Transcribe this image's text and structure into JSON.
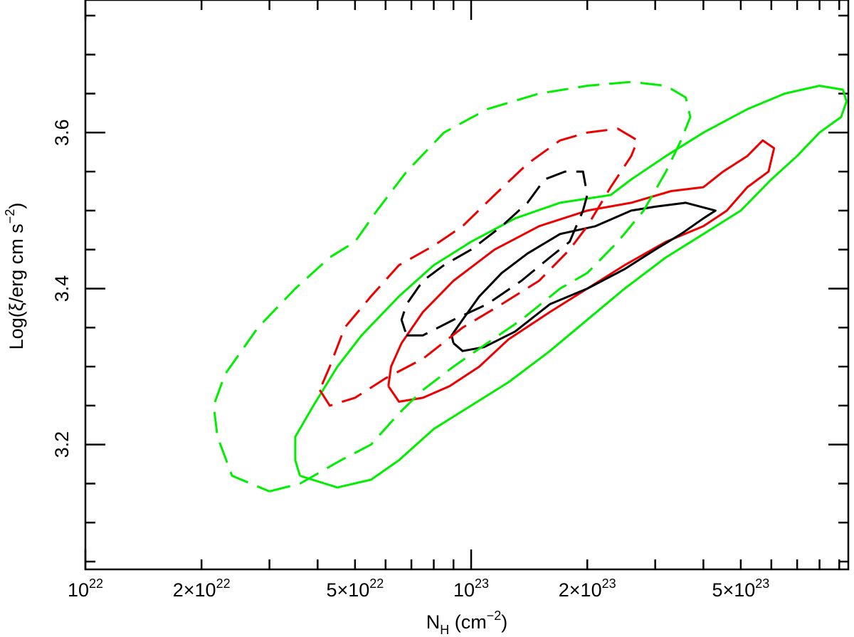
{
  "chart_data": {
    "type": "contour",
    "xlabel": {
      "main": "N",
      "sub": "H",
      "unit_prefix": " (cm",
      "unit_sup": "−2",
      "unit_suffix": ")"
    },
    "ylabel": {
      "main": "Log(ξ/erg cm s",
      "sup": "−2",
      "suffix": ")"
    },
    "x_scale": "log",
    "xlim": [
      1e+22,
      9.5e+23
    ],
    "ylim": [
      3.04,
      3.77
    ],
    "x_ticks": [
      {
        "value": 1e+22,
        "base": "10",
        "exp": "22",
        "mult": ""
      },
      {
        "value": 2e+22,
        "base": "10",
        "exp": "22",
        "mult": "2×"
      },
      {
        "value": 5e+22,
        "base": "10",
        "exp": "22",
        "mult": "5×"
      },
      {
        "value": 1e+23,
        "base": "10",
        "exp": "23",
        "mult": ""
      },
      {
        "value": 2e+23,
        "base": "10",
        "exp": "23",
        "mult": "2×"
      },
      {
        "value": 5e+23,
        "base": "10",
        "exp": "23",
        "mult": "5×"
      }
    ],
    "y_ticks": [
      {
        "value": 3.2,
        "label": "3.2"
      },
      {
        "value": 3.4,
        "label": "3.4"
      },
      {
        "value": 3.6,
        "label": "3.6"
      }
    ],
    "grid": false,
    "series": [
      {
        "color": "#00ee00",
        "style": "solid",
        "points": [
          [
            3.6e+22,
            3.16
          ],
          [
            4.5e+22,
            3.145
          ],
          [
            5.5e+22,
            3.155
          ],
          [
            6.5e+22,
            3.18
          ],
          [
            8e+22,
            3.22
          ],
          [
            1e+23,
            3.25
          ],
          [
            1.25e+23,
            3.28
          ],
          [
            1.6e+23,
            3.32
          ],
          [
            2e+23,
            3.36
          ],
          [
            2.5e+23,
            3.4
          ],
          [
            3.2e+23,
            3.44
          ],
          [
            4e+23,
            3.47
          ],
          [
            5e+23,
            3.5
          ],
          [
            6e+23,
            3.54
          ],
          [
            7e+23,
            3.57
          ],
          [
            8e+23,
            3.6
          ],
          [
            9.1e+23,
            3.62
          ],
          [
            9.4e+23,
            3.64
          ],
          [
            9.2e+23,
            3.655
          ],
          [
            8e+23,
            3.66
          ],
          [
            6.5e+23,
            3.65
          ],
          [
            5.2e+23,
            3.63
          ],
          [
            4e+23,
            3.6
          ],
          [
            3.2e+23,
            3.57
          ],
          [
            2.6e+23,
            3.54
          ],
          [
            2.3e+23,
            3.52
          ],
          [
            1.7e+23,
            3.51
          ],
          [
            1.3e+23,
            3.49
          ],
          [
            1e+23,
            3.46
          ],
          [
            8e+22,
            3.43
          ],
          [
            6.5e+22,
            3.39
          ],
          [
            5.2e+22,
            3.34
          ],
          [
            4.5e+22,
            3.3
          ],
          [
            3.9e+22,
            3.25
          ],
          [
            3.5e+22,
            3.21
          ],
          [
            3.5e+22,
            3.18
          ],
          [
            3.6e+22,
            3.16
          ]
        ]
      },
      {
        "color": "#ee0000",
        "style": "solid",
        "points": [
          [
            6.1e+22,
            3.275
          ],
          [
            6.5e+22,
            3.255
          ],
          [
            7.5e+22,
            3.26
          ],
          [
            8.8e+22,
            3.275
          ],
          [
            1.05e+23,
            3.3
          ],
          [
            1.25e+23,
            3.335
          ],
          [
            1.6e+23,
            3.37
          ],
          [
            2e+23,
            3.4
          ],
          [
            2.5e+23,
            3.43
          ],
          [
            3.2e+23,
            3.46
          ],
          [
            4e+23,
            3.48
          ],
          [
            4.6e+23,
            3.5
          ],
          [
            5.2e+23,
            3.53
          ],
          [
            5.9e+23,
            3.55
          ],
          [
            6.1e+23,
            3.58
          ],
          [
            5.7e+23,
            3.59
          ],
          [
            5.2e+23,
            3.57
          ],
          [
            4.5e+23,
            3.55
          ],
          [
            4e+23,
            3.53
          ],
          [
            3.3e+23,
            3.525
          ],
          [
            2.6e+23,
            3.51
          ],
          [
            2e+23,
            3.5
          ],
          [
            1.5e+23,
            3.48
          ],
          [
            1.15e+23,
            3.45
          ],
          [
            9e+22,
            3.41
          ],
          [
            7.5e+22,
            3.37
          ],
          [
            6.6e+22,
            3.33
          ],
          [
            6.2e+22,
            3.3
          ],
          [
            6.1e+22,
            3.275
          ]
        ]
      },
      {
        "color": "#000000",
        "style": "solid",
        "points": [
          [
            9e+22,
            3.33
          ],
          [
            9.5e+22,
            3.32
          ],
          [
            1.08e+23,
            3.325
          ],
          [
            1.3e+23,
            3.345
          ],
          [
            1.6e+23,
            3.38
          ],
          [
            2e+23,
            3.4
          ],
          [
            2.5e+23,
            3.425
          ],
          [
            3e+23,
            3.45
          ],
          [
            3.5e+23,
            3.47
          ],
          [
            4e+23,
            3.49
          ],
          [
            4.3e+23,
            3.5
          ],
          [
            3.6e+23,
            3.51
          ],
          [
            3e+23,
            3.505
          ],
          [
            2.6e+23,
            3.5
          ],
          [
            2.1e+23,
            3.48
          ],
          [
            1.7e+23,
            3.47
          ],
          [
            1.4e+23,
            3.445
          ],
          [
            1.2e+23,
            3.42
          ],
          [
            1.05e+23,
            3.39
          ],
          [
            9.5e+22,
            3.36
          ],
          [
            8.9e+22,
            3.34
          ],
          [
            9e+22,
            3.33
          ]
        ]
      },
      {
        "color": "#00ee00",
        "style": "dashed",
        "points": [
          [
            3e+22,
            3.14
          ],
          [
            3.6e+22,
            3.15
          ],
          [
            4.6e+22,
            3.18
          ],
          [
            5.5e+22,
            3.2
          ],
          [
            6.5e+22,
            3.24
          ],
          [
            7.5e+22,
            3.27
          ],
          [
            9e+22,
            3.3
          ],
          [
            1.1e+23,
            3.33
          ],
          [
            1.35e+23,
            3.36
          ],
          [
            1.7e+23,
            3.4
          ],
          [
            2e+23,
            3.42
          ],
          [
            2.4e+23,
            3.46
          ],
          [
            2.8e+23,
            3.5
          ],
          [
            3.2e+23,
            3.55
          ],
          [
            3.5e+23,
            3.59
          ],
          [
            3.7e+23,
            3.62
          ],
          [
            3.6e+23,
            3.645
          ],
          [
            3.2e+23,
            3.66
          ],
          [
            2.6e+23,
            3.665
          ],
          [
            2e+23,
            3.66
          ],
          [
            1.5e+23,
            3.65
          ],
          [
            1.1e+23,
            3.63
          ],
          [
            8.5e+22,
            3.6
          ],
          [
            6.8e+22,
            3.55
          ],
          [
            5.7e+22,
            3.5
          ],
          [
            5e+22,
            3.46
          ],
          [
            4.3e+22,
            3.44
          ],
          [
            3.5e+22,
            3.4
          ],
          [
            2.8e+22,
            3.35
          ],
          [
            2.3e+22,
            3.29
          ],
          [
            2.15e+22,
            3.25
          ],
          [
            2.2e+22,
            3.21
          ],
          [
            2.4e+22,
            3.16
          ],
          [
            3e+22,
            3.14
          ]
        ]
      },
      {
        "color": "#ee0000",
        "style": "dashed",
        "points": [
          [
            4.05e+22,
            3.27
          ],
          [
            4.3e+22,
            3.25
          ],
          [
            5e+22,
            3.26
          ],
          [
            6e+22,
            3.285
          ],
          [
            7.5e+22,
            3.31
          ],
          [
            9.5e+22,
            3.35
          ],
          [
            1.2e+23,
            3.38
          ],
          [
            1.5e+23,
            3.41
          ],
          [
            1.8e+23,
            3.45
          ],
          [
            2e+23,
            3.48
          ],
          [
            2.3e+23,
            3.53
          ],
          [
            2.6e+23,
            3.57
          ],
          [
            2.7e+23,
            3.59
          ],
          [
            2.4e+23,
            3.605
          ],
          [
            2e+23,
            3.6
          ],
          [
            1.7e+23,
            3.59
          ],
          [
            1.4e+23,
            3.56
          ],
          [
            1.15e+23,
            3.52
          ],
          [
            9.5e+22,
            3.48
          ],
          [
            8e+22,
            3.455
          ],
          [
            6.5e+22,
            3.43
          ],
          [
            5.5e+22,
            3.39
          ],
          [
            4.7e+22,
            3.35
          ],
          [
            4.3e+22,
            3.3
          ],
          [
            4.05e+22,
            3.27
          ]
        ]
      },
      {
        "color": "#000000",
        "style": "dashed",
        "points": [
          [
            6.8e+22,
            3.34
          ],
          [
            7.5e+22,
            3.34
          ],
          [
            9e+22,
            3.36
          ],
          [
            1.1e+23,
            3.38
          ],
          [
            1.35e+23,
            3.41
          ],
          [
            1.6e+23,
            3.44
          ],
          [
            1.8e+23,
            3.46
          ],
          [
            1.95e+23,
            3.5
          ],
          [
            2e+23,
            3.52
          ],
          [
            1.95e+23,
            3.55
          ],
          [
            1.75e+23,
            3.55
          ],
          [
            1.55e+23,
            3.54
          ],
          [
            1.4e+23,
            3.51
          ],
          [
            1.2e+23,
            3.48
          ],
          [
            1e+23,
            3.45
          ],
          [
            8.5e+22,
            3.43
          ],
          [
            7.5e+22,
            3.41
          ],
          [
            6.8e+22,
            3.38
          ],
          [
            6.6e+22,
            3.36
          ],
          [
            6.8e+22,
            3.34
          ]
        ]
      }
    ]
  }
}
